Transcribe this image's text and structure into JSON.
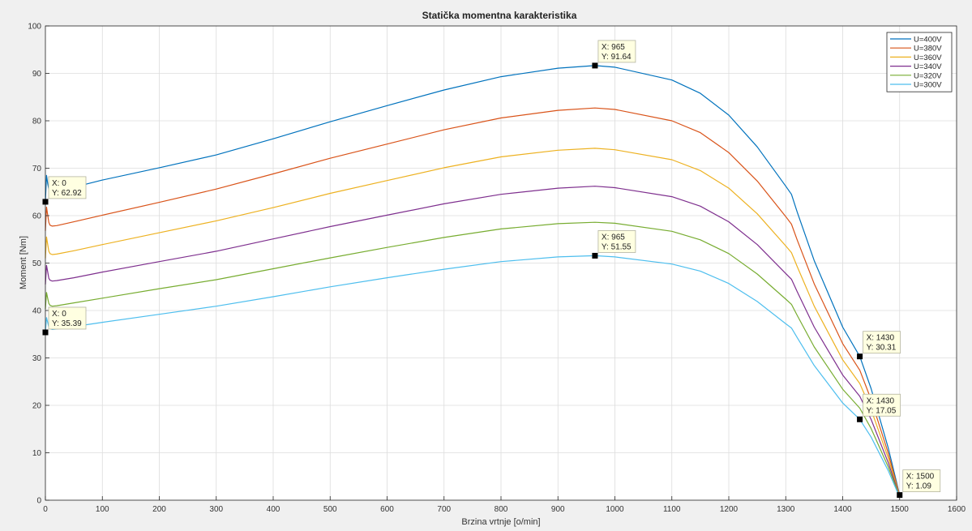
{
  "chart_data": {
    "type": "line",
    "title": "Statička momentna karakteristika",
    "xlabel": "Brzina vrtnje [o/min]",
    "ylabel": "Moment [Nm]",
    "xlim": [
      0,
      1600
    ],
    "ylim": [
      0,
      100
    ],
    "xticks": [
      0,
      100,
      200,
      300,
      400,
      500,
      600,
      700,
      800,
      900,
      1000,
      1100,
      1200,
      1300,
      1400,
      1500,
      1600
    ],
    "yticks": [
      0,
      10,
      20,
      30,
      40,
      50,
      60,
      70,
      80,
      90,
      100
    ],
    "grid": true,
    "legend_position": "top-right",
    "x": [
      0,
      2,
      4,
      6,
      8,
      12,
      20,
      50,
      100,
      200,
      300,
      400,
      500,
      600,
      700,
      800,
      900,
      965,
      1000,
      1100,
      1150,
      1200,
      1250,
      1300,
      1310,
      1320,
      1350,
      1400,
      1430,
      1450,
      1480,
      1500
    ],
    "series": [
      {
        "name": "U=400V",
        "color": "#0072bd",
        "values": [
          62.92,
          68.5,
          66.8,
          65.6,
          65.2,
          65.0,
          65.1,
          66.0,
          67.5,
          70.1,
          72.8,
          76.2,
          79.8,
          83.2,
          86.5,
          89.3,
          91.1,
          91.64,
          91.3,
          88.6,
          85.8,
          81.2,
          74.5,
          66.2,
          64.5,
          60.8,
          50.5,
          36.5,
          30.31,
          23.5,
          11.0,
          1.09
        ]
      },
      {
        "name": "U=380V",
        "color": "#d95319",
        "values": [
          56.8,
          61.8,
          60.2,
          58.6,
          58.0,
          57.8,
          57.9,
          58.7,
          60.1,
          62.8,
          65.6,
          68.8,
          72.1,
          75.1,
          78.1,
          80.6,
          82.2,
          82.7,
          82.4,
          80.0,
          77.5,
          73.3,
          67.3,
          59.8,
          58.2,
          54.9,
          45.6,
          33.0,
          27.4,
          21.2,
          9.9,
          1.0
        ]
      },
      {
        "name": "U=360V",
        "color": "#edb120",
        "values": [
          51.0,
          55.5,
          54.0,
          52.5,
          52.0,
          51.8,
          51.9,
          52.6,
          53.9,
          56.4,
          58.9,
          61.7,
          64.7,
          67.4,
          70.1,
          72.4,
          73.8,
          74.2,
          73.9,
          71.8,
          69.5,
          65.8,
          60.4,
          53.6,
          52.2,
          49.3,
          40.9,
          29.6,
          24.6,
          19.1,
          8.9,
          0.9
        ]
      },
      {
        "name": "U=340V",
        "color": "#7e2f8e",
        "values": [
          45.5,
          49.5,
          48.2,
          46.8,
          46.4,
          46.2,
          46.3,
          46.9,
          48.1,
          50.3,
          52.5,
          55.1,
          57.7,
          60.1,
          62.5,
          64.5,
          65.8,
          66.2,
          65.9,
          64.0,
          62.0,
          58.7,
          53.9,
          47.8,
          46.6,
          44.0,
          36.5,
          26.4,
          21.9,
          17.0,
          7.9,
          0.8
        ]
      },
      {
        "name": "U=320V",
        "color": "#77ac30",
        "values": [
          40.3,
          43.8,
          42.6,
          41.5,
          41.1,
          40.9,
          41.0,
          41.6,
          42.6,
          44.6,
          46.5,
          48.8,
          51.1,
          53.3,
          55.4,
          57.2,
          58.3,
          58.6,
          58.4,
          56.7,
          54.9,
          52.0,
          47.7,
          42.4,
          41.3,
          39.0,
          32.3,
          23.4,
          19.4,
          15.1,
          7.0,
          0.7
        ]
      },
      {
        "name": "U=300V",
        "color": "#4dbeee",
        "values": [
          35.39,
          38.5,
          37.5,
          36.5,
          36.2,
          36.0,
          36.1,
          36.6,
          37.5,
          39.2,
          40.9,
          42.9,
          45.0,
          46.9,
          48.7,
          50.3,
          51.3,
          51.55,
          51.3,
          49.8,
          48.3,
          45.7,
          41.9,
          37.2,
          36.3,
          34.3,
          28.4,
          20.5,
          17.05,
          13.3,
          6.2,
          0.6
        ]
      }
    ],
    "datatips": [
      {
        "x": 0,
        "y": 62.92,
        "line1": "X: 0",
        "line2": "Y: 62.92"
      },
      {
        "x": 0,
        "y": 35.39,
        "line1": "X: 0",
        "line2": "Y: 35.39"
      },
      {
        "x": 965,
        "y": 91.64,
        "line1": "X: 965",
        "line2": "Y: 91.64"
      },
      {
        "x": 965,
        "y": 51.55,
        "line1": "X: 965",
        "line2": "Y: 51.55"
      },
      {
        "x": 1430,
        "y": 30.31,
        "line1": "X: 1430",
        "line2": "Y: 30.31"
      },
      {
        "x": 1430,
        "y": 17.05,
        "line1": "X: 1430",
        "line2": "Y: 17.05"
      },
      {
        "x": 1500,
        "y": 1.09,
        "line1": "X: 1500",
        "line2": "Y: 1.09"
      }
    ]
  }
}
